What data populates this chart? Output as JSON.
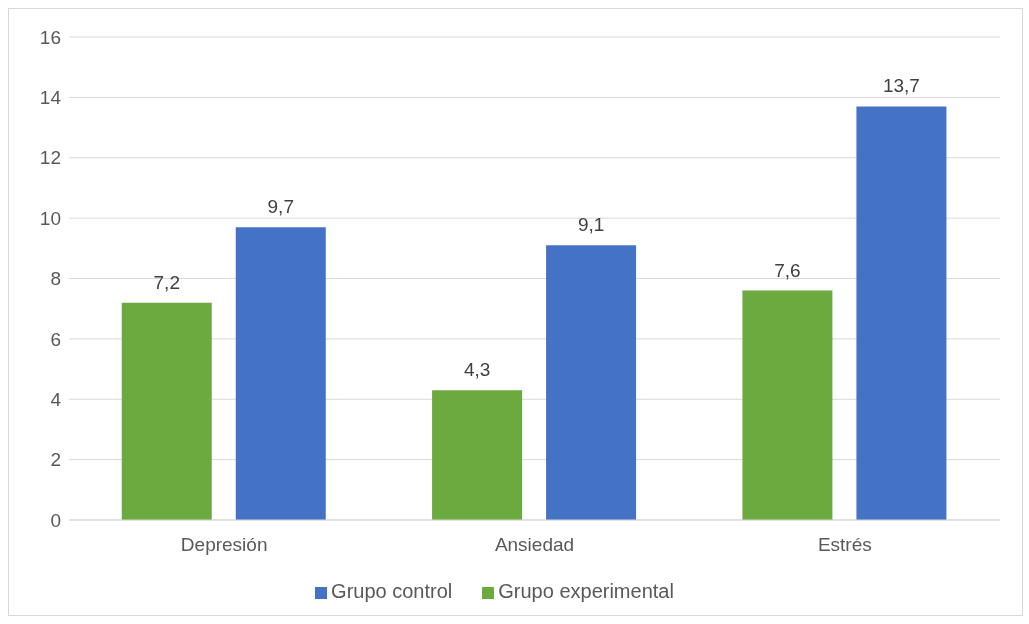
{
  "chart_data": {
    "type": "bar",
    "categories": [
      "Depresión",
      "Ansiedad",
      "Estrés"
    ],
    "series": [
      {
        "name": "Grupo experimental",
        "color": "#6aaa3e",
        "values": [
          7.2,
          4.3,
          7.6
        ],
        "value_labels": [
          "7,2",
          "4,3",
          "7,6"
        ]
      },
      {
        "name": "Grupo control",
        "color": "#4472c4",
        "values": [
          9.7,
          9.1,
          13.7
        ],
        "value_labels": [
          "9,7",
          "9,1",
          "13,7"
        ]
      }
    ],
    "ylim": [
      0,
      16
    ],
    "yticks": [
      0,
      2,
      4,
      6,
      8,
      10,
      12,
      14,
      16
    ],
    "grid": "y",
    "legend": "bottom"
  }
}
